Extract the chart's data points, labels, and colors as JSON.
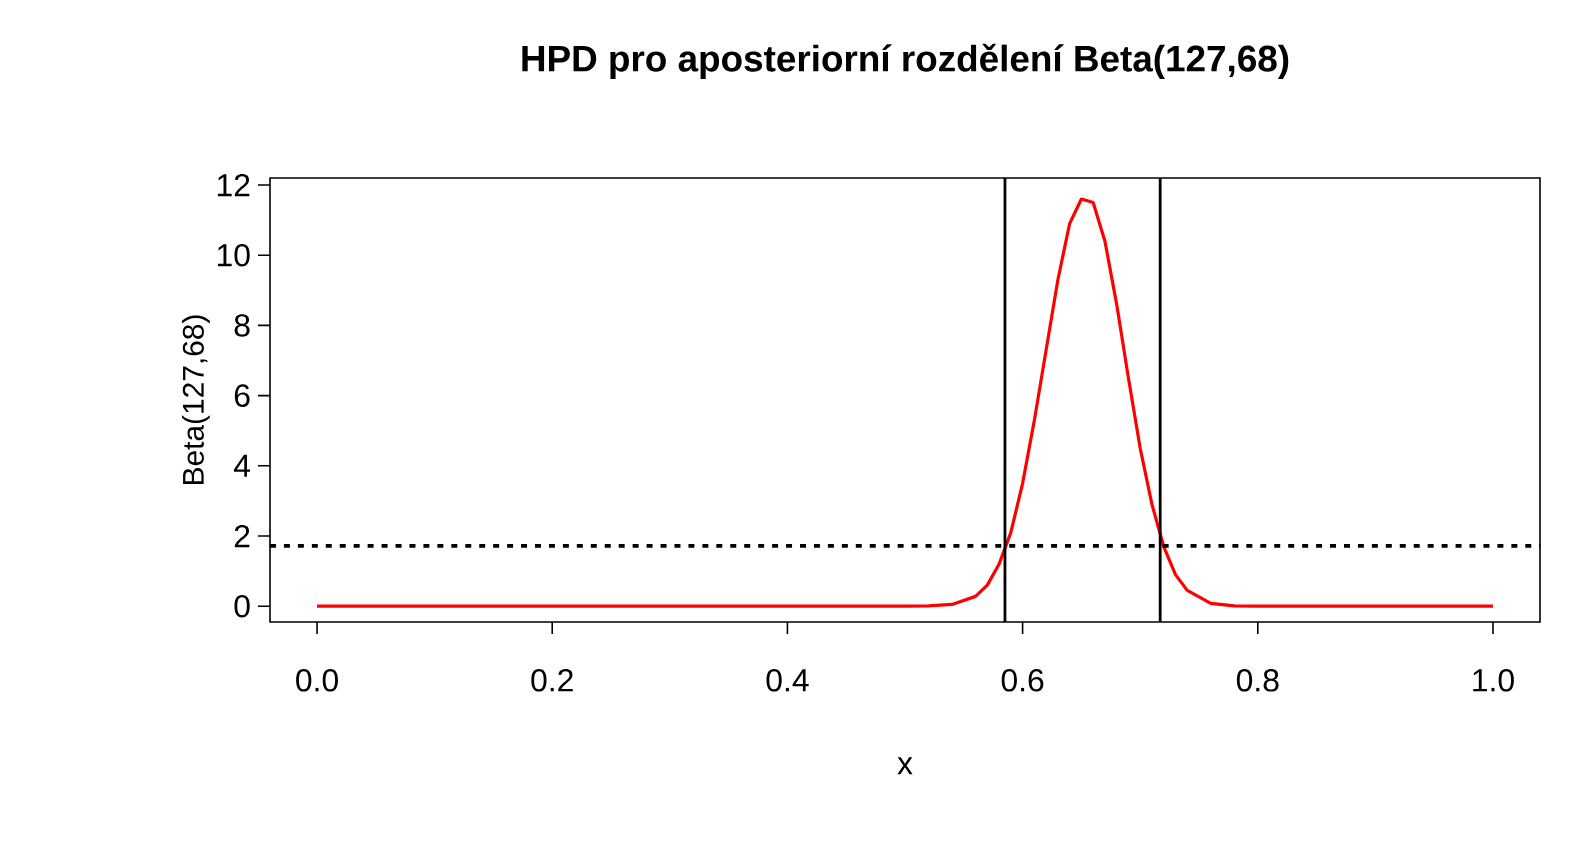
{
  "chart_data": {
    "type": "line",
    "title": "HPD pro aposteriorní rozdělení Beta(127,68)",
    "xlabel": "x",
    "ylabel": "Beta(127,68)",
    "x": [
      0.0,
      0.1,
      0.2,
      0.3,
      0.4,
      0.5,
      0.52,
      0.54,
      0.56,
      0.57,
      0.58,
      0.59,
      0.6,
      0.61,
      0.62,
      0.63,
      0.64,
      0.65,
      0.66,
      0.67,
      0.68,
      0.69,
      0.7,
      0.71,
      0.72,
      0.73,
      0.74,
      0.76,
      0.78,
      0.8,
      0.9,
      1.0
    ],
    "series": [
      {
        "color": "#ff0000",
        "values": [
          0,
          0,
          0,
          0,
          0,
          0,
          0.01,
          0.05,
          0.28,
          0.6,
          1.2,
          2.1,
          3.5,
          5.3,
          7.3,
          9.3,
          10.9,
          11.6,
          11.5,
          10.4,
          8.6,
          6.5,
          4.5,
          2.9,
          1.7,
          0.9,
          0.45,
          0.08,
          0.01,
          0,
          0,
          0
        ]
      }
    ],
    "xlim": [
      -0.04,
      1.04
    ],
    "ylim": [
      -0.45,
      12.2
    ],
    "xticks": [
      {
        "value": 0,
        "label": "0.0"
      },
      {
        "value": 0.2,
        "label": "0.2"
      },
      {
        "value": 0.4,
        "label": "0.4"
      },
      {
        "value": 0.6,
        "label": "0.6"
      },
      {
        "value": 0.8,
        "label": "0.8"
      },
      {
        "value": 1,
        "label": "1.0"
      }
    ],
    "yticks": [
      0,
      2,
      4,
      6,
      8,
      10,
      12
    ],
    "ref_lines": [
      {
        "axis": "x",
        "value": 0.585,
        "color": "#000000",
        "line_style": "solid"
      },
      {
        "axis": "x",
        "value": 0.717,
        "color": "#000000",
        "line_style": "solid"
      },
      {
        "axis": "y",
        "value": 1.72,
        "color": "#000000",
        "line_style": "dotted"
      }
    ],
    "grid": false,
    "marker": "none",
    "line_style": "solid"
  }
}
